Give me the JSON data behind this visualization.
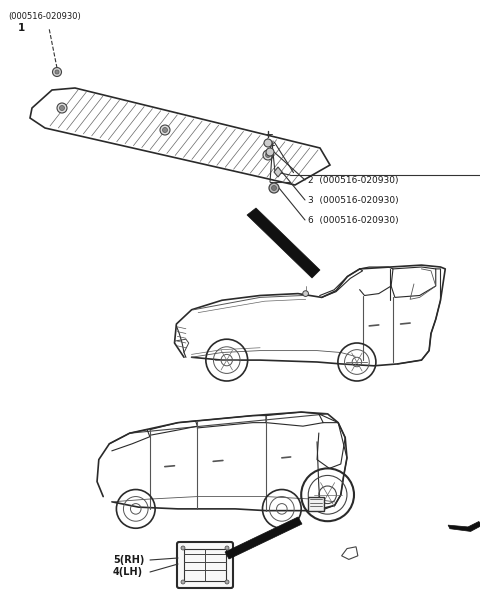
{
  "background_color": "#ffffff",
  "fig_width": 4.8,
  "fig_height": 6.14,
  "dpi": 100,
  "text_color": "#1a1a1a",
  "line_color": "#333333",
  "label1_top": "(000516-020930)",
  "label1_num": "1",
  "label2_text": "2  (000516-020930)",
  "label3_text": "3  (000516-020930)",
  "label6_text": "6  (000516-020930)",
  "label5_text": "5(RH)",
  "label4_text": "4(LH)"
}
